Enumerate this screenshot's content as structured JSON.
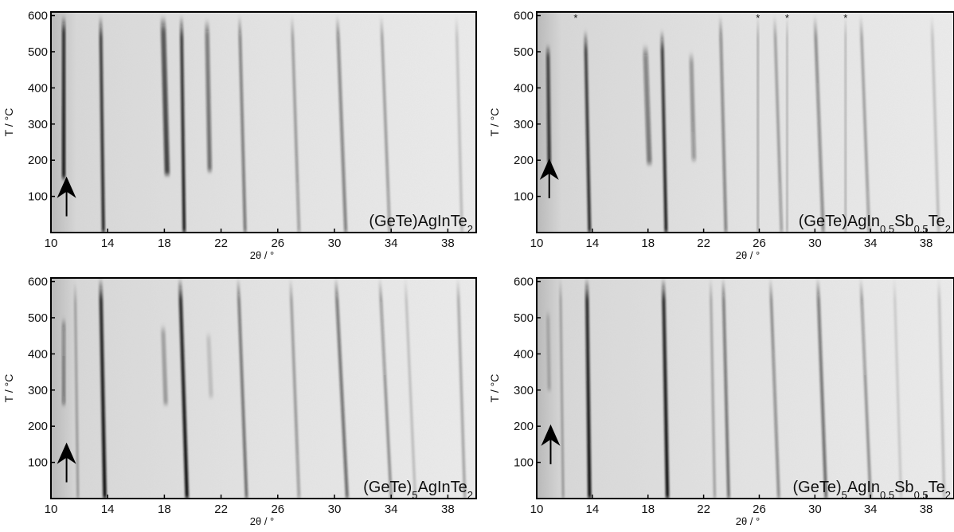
{
  "figure": {
    "xlabel": "2θ / °",
    "ylabel": "T / °C",
    "x_ticks": [
      10,
      14,
      18,
      22,
      26,
      30,
      34,
      38
    ],
    "y_ticks": [
      100,
      200,
      300,
      400,
      500,
      600
    ],
    "marker_symbol": "*",
    "arrow_icon": "up-arrow-icon",
    "colors": {
      "background_light": "#dcdcdc",
      "reflection_dark": "#111111",
      "frame": "#000000"
    }
  },
  "chart_data": [
    {
      "type": "heatmap",
      "sample": {
        "prefix": "(GeTe)",
        "prefix_sub": "",
        "mid": "AgIn",
        "in_sub": "",
        "tail": "",
        "sb_sub": "",
        "te": "Te",
        "te_sub": "2"
      },
      "xlim": [
        10,
        40
      ],
      "ylim": [
        0,
        610
      ],
      "xlabel": "2θ / °",
      "ylabel": "T / °C",
      "arrow_at": {
        "x": 11.1,
        "T": 100
      },
      "markers": [],
      "reflections": [
        {
          "x0": 10.9,
          "x1": 10.9,
          "ymin": 150,
          "ymax": 600,
          "i": 0.95,
          "w": 0.25
        },
        {
          "x0": 13.7,
          "x1": 13.5,
          "ymin": 0,
          "ymax": 600,
          "i": 0.9,
          "w": 0.22
        },
        {
          "x0": 18.2,
          "x1": 17.9,
          "ymin": 160,
          "ymax": 600,
          "i": 0.75,
          "w": 0.35
        },
        {
          "x0": 19.4,
          "x1": 19.2,
          "ymin": 0,
          "ymax": 600,
          "i": 0.95,
          "w": 0.22
        },
        {
          "x0": 21.2,
          "x1": 21.0,
          "ymin": 170,
          "ymax": 590,
          "i": 0.55,
          "w": 0.3
        },
        {
          "x0": 23.7,
          "x1": 23.3,
          "ymin": 0,
          "ymax": 600,
          "i": 0.55,
          "w": 0.2
        },
        {
          "x0": 27.5,
          "x1": 27.0,
          "ymin": 0,
          "ymax": 600,
          "i": 0.35,
          "w": 0.2
        },
        {
          "x0": 30.8,
          "x1": 30.2,
          "ymin": 0,
          "ymax": 600,
          "i": 0.5,
          "w": 0.22
        },
        {
          "x0": 33.9,
          "x1": 33.3,
          "ymin": 0,
          "ymax": 600,
          "i": 0.35,
          "w": 0.2
        },
        {
          "x0": 39.0,
          "x1": 38.6,
          "ymin": 0,
          "ymax": 600,
          "i": 0.2,
          "w": 0.2
        }
      ]
    },
    {
      "type": "heatmap",
      "sample": {
        "prefix": "(GeTe)",
        "prefix_sub": "",
        "mid": "AgIn",
        "in_sub": "0.5",
        "tail": "Sb",
        "sb_sub": "0.5",
        "te": "Te",
        "te_sub": "2"
      },
      "xlim": [
        10,
        40
      ],
      "ylim": [
        0,
        610
      ],
      "xlabel": "2θ / °",
      "ylabel": "T / °C",
      "arrow_at": {
        "x": 10.9,
        "T": 150
      },
      "markers": [
        12.8,
        25.9,
        28.0,
        32.2
      ],
      "reflections": [
        {
          "x0": 10.9,
          "x1": 10.8,
          "ymin": 190,
          "ymax": 520,
          "i": 0.85,
          "w": 0.25
        },
        {
          "x0": 13.8,
          "x1": 13.5,
          "ymin": 0,
          "ymax": 560,
          "i": 0.9,
          "w": 0.22
        },
        {
          "x0": 18.1,
          "x1": 17.8,
          "ymin": 190,
          "ymax": 520,
          "i": 0.5,
          "w": 0.35
        },
        {
          "x0": 19.3,
          "x1": 19.0,
          "ymin": 0,
          "ymax": 560,
          "i": 0.95,
          "w": 0.22
        },
        {
          "x0": 21.3,
          "x1": 21.1,
          "ymin": 200,
          "ymax": 500,
          "i": 0.35,
          "w": 0.3
        },
        {
          "x0": 23.6,
          "x1": 23.2,
          "ymin": 0,
          "ymax": 600,
          "i": 0.5,
          "w": 0.2
        },
        {
          "x0": 25.9,
          "x1": 25.9,
          "ymin": 0,
          "ymax": 600,
          "i": 0.3,
          "w": 0.15
        },
        {
          "x0": 27.6,
          "x1": 27.1,
          "ymin": 0,
          "ymax": 600,
          "i": 0.35,
          "w": 0.2
        },
        {
          "x0": 28.0,
          "x1": 28.0,
          "ymin": 0,
          "ymax": 600,
          "i": 0.25,
          "w": 0.15
        },
        {
          "x0": 30.6,
          "x1": 30.0,
          "ymin": 0,
          "ymax": 600,
          "i": 0.45,
          "w": 0.22
        },
        {
          "x0": 32.2,
          "x1": 32.2,
          "ymin": 0,
          "ymax": 600,
          "i": 0.25,
          "w": 0.15
        },
        {
          "x0": 33.9,
          "x1": 33.3,
          "ymin": 0,
          "ymax": 600,
          "i": 0.35,
          "w": 0.2
        },
        {
          "x0": 38.9,
          "x1": 38.4,
          "ymin": 0,
          "ymax": 600,
          "i": 0.2,
          "w": 0.2
        }
      ]
    },
    {
      "type": "heatmap",
      "sample": {
        "prefix": "(GeTe)",
        "prefix_sub": "5",
        "mid": "AgIn",
        "in_sub": "",
        "tail": "",
        "sb_sub": "",
        "te": "Te",
        "te_sub": "2"
      },
      "xlim": [
        10,
        40
      ],
      "ylim": [
        0,
        610
      ],
      "xlabel": "2θ / °",
      "ylabel": "T / °C",
      "arrow_at": {
        "x": 11.1,
        "T": 100
      },
      "markers": [],
      "reflections": [
        {
          "x0": 10.9,
          "x1": 10.9,
          "ymin": 260,
          "ymax": 500,
          "i": 0.4,
          "w": 0.25
        },
        {
          "x0": 11.9,
          "x1": 11.7,
          "ymin": 0,
          "ymax": 600,
          "i": 0.3,
          "w": 0.18
        },
        {
          "x0": 13.8,
          "x1": 13.5,
          "ymin": 0,
          "ymax": 610,
          "i": 1.0,
          "w": 0.25
        },
        {
          "x0": 18.1,
          "x1": 17.9,
          "ymin": 260,
          "ymax": 480,
          "i": 0.3,
          "w": 0.3
        },
        {
          "x0": 19.6,
          "x1": 19.1,
          "ymin": 0,
          "ymax": 610,
          "i": 1.0,
          "w": 0.25
        },
        {
          "x0": 21.3,
          "x1": 21.1,
          "ymin": 280,
          "ymax": 460,
          "i": 0.15,
          "w": 0.3
        },
        {
          "x0": 23.8,
          "x1": 23.2,
          "ymin": 0,
          "ymax": 610,
          "i": 0.6,
          "w": 0.2
        },
        {
          "x0": 27.5,
          "x1": 26.9,
          "ymin": 0,
          "ymax": 610,
          "i": 0.35,
          "w": 0.2
        },
        {
          "x0": 30.9,
          "x1": 30.1,
          "ymin": 0,
          "ymax": 610,
          "i": 0.6,
          "w": 0.22
        },
        {
          "x0": 34.0,
          "x1": 33.2,
          "ymin": 0,
          "ymax": 610,
          "i": 0.4,
          "w": 0.2
        },
        {
          "x0": 35.7,
          "x1": 35.0,
          "ymin": 0,
          "ymax": 610,
          "i": 0.2,
          "w": 0.18
        },
        {
          "x0": 39.2,
          "x1": 38.7,
          "ymin": 0,
          "ymax": 610,
          "i": 0.3,
          "w": 0.2
        }
      ]
    },
    {
      "type": "heatmap",
      "sample": {
        "prefix": "(GeTe)",
        "prefix_sub": "5",
        "mid": "AgIn",
        "in_sub": "0.5",
        "tail": "Sb",
        "sb_sub": "0.5",
        "te": "Te",
        "te_sub": "2"
      },
      "xlim": [
        10,
        40
      ],
      "ylim": [
        0,
        610
      ],
      "xlabel": "2θ / °",
      "ylabel": "T / °C",
      "arrow_at": {
        "x": 11.0,
        "T": 150
      },
      "markers": [],
      "reflections": [
        {
          "x0": 10.9,
          "x1": 10.8,
          "ymin": 300,
          "ymax": 520,
          "i": 0.2,
          "w": 0.25
        },
        {
          "x0": 11.9,
          "x1": 11.7,
          "ymin": 0,
          "ymax": 610,
          "i": 0.3,
          "w": 0.18
        },
        {
          "x0": 13.8,
          "x1": 13.6,
          "ymin": 0,
          "ymax": 610,
          "i": 1.0,
          "w": 0.25
        },
        {
          "x0": 19.4,
          "x1": 19.1,
          "ymin": 0,
          "ymax": 610,
          "i": 1.0,
          "w": 0.25
        },
        {
          "x0": 22.8,
          "x1": 22.5,
          "ymin": 0,
          "ymax": 610,
          "i": 0.3,
          "w": 0.18
        },
        {
          "x0": 23.8,
          "x1": 23.4,
          "ymin": 0,
          "ymax": 610,
          "i": 0.6,
          "w": 0.2
        },
        {
          "x0": 27.4,
          "x1": 26.8,
          "ymin": 0,
          "ymax": 610,
          "i": 0.45,
          "w": 0.2
        },
        {
          "x0": 30.8,
          "x1": 30.2,
          "ymin": 0,
          "ymax": 610,
          "i": 0.6,
          "w": 0.22
        },
        {
          "x0": 34.0,
          "x1": 33.3,
          "ymin": 0,
          "ymax": 610,
          "i": 0.4,
          "w": 0.2
        },
        {
          "x0": 36.2,
          "x1": 35.7,
          "ymin": 0,
          "ymax": 610,
          "i": 0.15,
          "w": 0.18
        },
        {
          "x0": 39.3,
          "x1": 38.9,
          "ymin": 0,
          "ymax": 610,
          "i": 0.2,
          "w": 0.2
        }
      ]
    }
  ]
}
